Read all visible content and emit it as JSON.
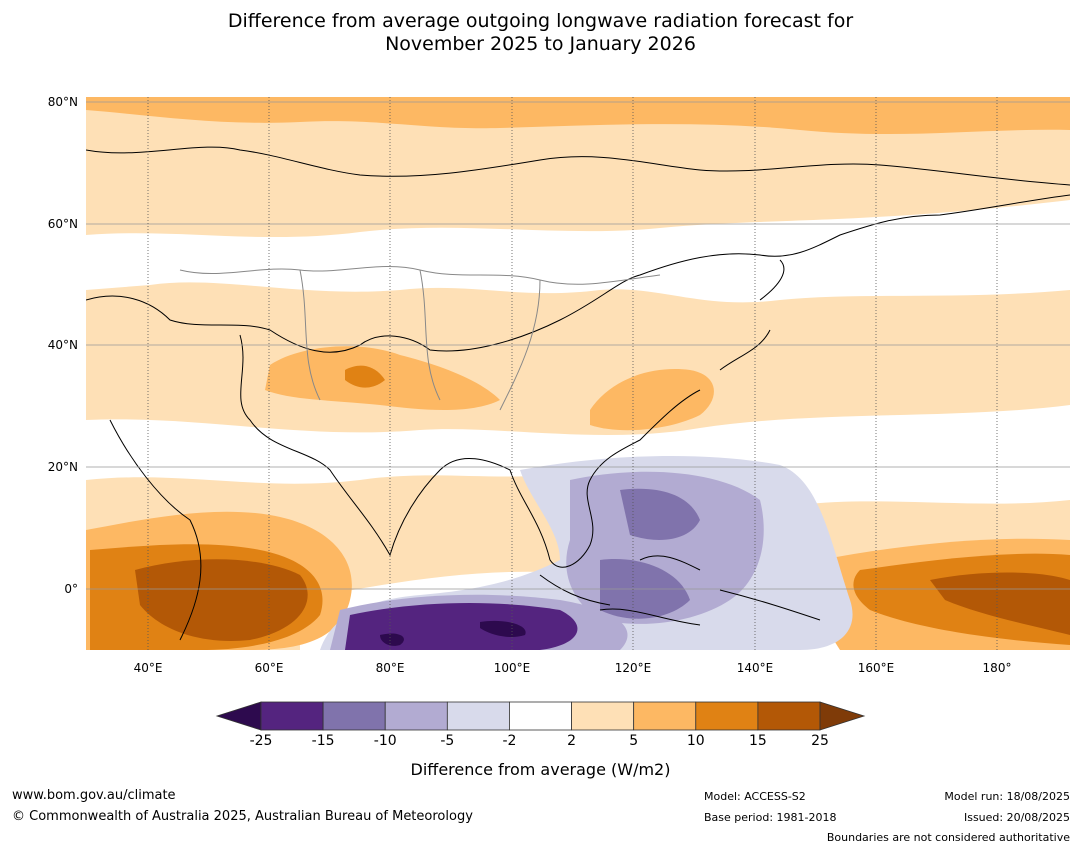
{
  "title_line1": "Difference from average outgoing longwave radiation forecast for",
  "title_line2": "November 2025 to January 2026",
  "lat_labels": [
    "80°N",
    "60°N",
    "40°N",
    "20°N",
    "0°"
  ],
  "lon_labels": [
    "40°E",
    "60°E",
    "80°E",
    "100°E",
    "120°E",
    "140°E",
    "160°E",
    "180°"
  ],
  "colorbar": {
    "ticks": [
      "-25",
      "-15",
      "-10",
      "-5",
      "-2",
      "2",
      "5",
      "10",
      "15",
      "25"
    ],
    "colors": [
      "#2d0a4e",
      "#54247f",
      "#8073ac",
      "#b2abd2",
      "#d8daeb",
      "#ffffff",
      "#fee0b6",
      "#fdb863",
      "#e08214",
      "#b35806",
      "#7f3b08"
    ],
    "label": "Difference from average (W/m2)"
  },
  "map_data": {
    "lat_range": [
      -10,
      80
    ],
    "lon_range": [
      30,
      191
    ],
    "gridlines": "dotted meridians, solid parallels"
  },
  "footer": {
    "url": "www.bom.gov.au/climate",
    "copyright": "© Commonwealth of Australia 2025, Australian Bureau of Meteorology",
    "model": "Model: ACCESS-S2",
    "base_period": "Base period: 1981-2018",
    "model_run": "Model run: 18/08/2025",
    "issued": "Issued: 20/08/2025",
    "disclaimer": "Boundaries are not considered authoritative"
  }
}
